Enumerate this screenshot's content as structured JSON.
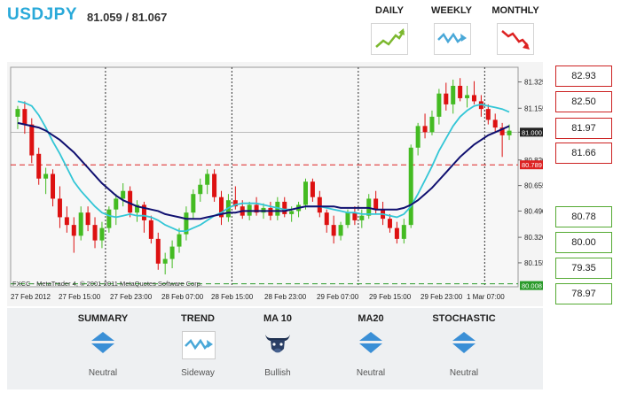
{
  "header": {
    "symbol": "USDJPY",
    "price": "81.059 / 81.067"
  },
  "timeframes": [
    {
      "label": "DAILY",
      "icon": "uptrend-arrow-icon",
      "color": "#7cb82f"
    },
    {
      "label": "WEEKLY",
      "icon": "sideways-arrow-icon",
      "color": "#4aa8d8"
    },
    {
      "label": "MONTHLY",
      "icon": "downtrend-arrow-icon",
      "color": "#dd2222"
    }
  ],
  "chart": {
    "watermark": "FXCC - MetaTrader 4, © 2001-2011 MetaQuotes Software Corp.",
    "y_ticks": [
      "81.325",
      "81.155",
      "81.000",
      "80.820",
      "80.655",
      "80.490",
      "80.320",
      "80.155"
    ],
    "x_ticks": [
      "27 Feb 2012",
      "27 Feb 15:00",
      "27 Feb 23:00",
      "28 Feb 07:00",
      "28 Feb 15:00",
      "28 Feb 23:00",
      "29 Feb 07:00",
      "29 Feb 15:00",
      "29 Feb 23:00",
      "1 Mar 07:00"
    ],
    "current_price_tag": "81.000",
    "resistance_line_tag": "80.789",
    "support_line_tag": "80.008",
    "colors": {
      "bull": "#44bb22",
      "bear": "#dd1111",
      "ma10": "#33c6d6",
      "ma20": "#101070",
      "hline": "#dd2222"
    }
  },
  "chart_data": {
    "type": "candlestick",
    "title": "USDJPY",
    "ylim": [
      80.0,
      81.42
    ],
    "y_ticks": [
      81.325,
      81.155,
      81.0,
      80.82,
      80.655,
      80.49,
      80.32,
      80.155
    ],
    "x_tick_labels": [
      "27 Feb 2012",
      "27 Feb 15:00",
      "27 Feb 23:00",
      "28 Feb 07:00",
      "28 Feb 15:00",
      "28 Feb 23:00",
      "29 Feb 07:00",
      "29 Feb 15:00",
      "29 Feb 23:00",
      "1 Mar 07:00"
    ],
    "candles": [
      [
        81.1,
        81.17,
        81.02,
        81.15
      ],
      [
        81.15,
        81.2,
        80.99,
        81.05
      ],
      [
        81.05,
        81.09,
        80.8,
        80.85
      ],
      [
        80.86,
        80.9,
        80.66,
        80.7
      ],
      [
        80.7,
        80.77,
        80.6,
        80.73
      ],
      [
        80.73,
        80.76,
        80.52,
        80.57
      ],
      [
        80.57,
        80.65,
        80.38,
        80.45
      ],
      [
        80.45,
        80.52,
        80.35,
        80.4
      ],
      [
        80.4,
        80.45,
        80.22,
        80.33
      ],
      [
        80.33,
        80.52,
        80.3,
        80.48
      ],
      [
        80.48,
        80.52,
        80.36,
        80.4
      ],
      [
        80.4,
        80.45,
        80.25,
        80.3
      ],
      [
        80.3,
        80.42,
        80.25,
        80.38
      ],
      [
        80.38,
        80.52,
        80.35,
        80.5
      ],
      [
        80.5,
        80.6,
        80.4,
        80.57
      ],
      [
        80.57,
        80.67,
        80.52,
        80.62
      ],
      [
        80.62,
        80.65,
        80.45,
        80.48
      ],
      [
        80.48,
        80.56,
        80.42,
        80.53
      ],
      [
        80.53,
        80.55,
        80.35,
        80.43
      ],
      [
        80.43,
        80.46,
        80.28,
        80.31
      ],
      [
        80.31,
        80.35,
        80.11,
        80.15
      ],
      [
        80.15,
        80.22,
        80.08,
        80.18
      ],
      [
        80.18,
        80.3,
        80.12,
        80.26
      ],
      [
        80.26,
        80.38,
        80.22,
        80.34
      ],
      [
        80.34,
        80.52,
        80.3,
        80.48
      ],
      [
        80.48,
        80.63,
        80.44,
        80.6
      ],
      [
        80.6,
        80.7,
        80.55,
        80.66
      ],
      [
        80.66,
        80.76,
        80.6,
        80.73
      ],
      [
        80.73,
        80.76,
        80.55,
        80.58
      ],
      [
        80.58,
        80.62,
        80.4,
        80.45
      ],
      [
        80.45,
        80.6,
        80.42,
        80.56
      ],
      [
        80.56,
        80.65,
        80.5,
        80.52
      ],
      [
        80.52,
        80.56,
        80.44,
        80.46
      ],
      [
        80.46,
        80.55,
        80.43,
        80.53
      ],
      [
        80.53,
        80.58,
        80.46,
        80.48
      ],
      [
        80.48,
        80.54,
        80.44,
        80.51
      ],
      [
        80.51,
        80.55,
        80.43,
        80.46
      ],
      [
        80.46,
        80.58,
        80.43,
        80.55
      ],
      [
        80.55,
        80.58,
        80.45,
        80.47
      ],
      [
        80.47,
        80.52,
        80.42,
        80.49
      ],
      [
        80.49,
        80.55,
        80.45,
        80.53
      ],
      [
        80.53,
        80.7,
        80.5,
        80.68
      ],
      [
        80.68,
        80.7,
        80.55,
        80.58
      ],
      [
        80.58,
        80.62,
        80.45,
        80.48
      ],
      [
        80.48,
        80.5,
        80.35,
        80.4
      ],
      [
        80.4,
        80.46,
        80.28,
        80.33
      ],
      [
        80.33,
        80.42,
        80.3,
        80.4
      ],
      [
        80.4,
        80.5,
        80.38,
        80.48
      ],
      [
        80.48,
        80.52,
        80.4,
        80.43
      ],
      [
        80.43,
        80.5,
        80.38,
        80.46
      ],
      [
        80.46,
        80.6,
        80.44,
        80.57
      ],
      [
        80.57,
        80.62,
        80.47,
        80.5
      ],
      [
        80.5,
        80.55,
        80.4,
        80.44
      ],
      [
        80.44,
        80.47,
        80.35,
        80.38
      ],
      [
        80.38,
        80.42,
        80.28,
        80.31
      ],
      [
        80.31,
        80.44,
        80.28,
        80.4
      ],
      [
        80.4,
        80.92,
        80.38,
        80.9
      ],
      [
        80.9,
        81.06,
        80.85,
        81.04
      ],
      [
        81.04,
        81.12,
        80.96,
        81.0
      ],
      [
        81.0,
        81.14,
        80.98,
        81.1
      ],
      [
        81.1,
        81.28,
        81.05,
        81.25
      ],
      [
        81.25,
        81.32,
        81.14,
        81.18
      ],
      [
        81.18,
        81.34,
        81.12,
        81.3
      ],
      [
        81.3,
        81.35,
        81.2,
        81.22
      ],
      [
        81.22,
        81.3,
        81.16,
        81.24
      ],
      [
        81.24,
        81.33,
        81.18,
        81.2
      ],
      [
        81.2,
        81.24,
        81.1,
        81.15
      ],
      [
        81.15,
        81.18,
        81.05,
        81.08
      ],
      [
        81.08,
        81.12,
        81.0,
        81.03
      ],
      [
        81.03,
        81.06,
        80.84,
        80.98
      ],
      [
        80.98,
        81.05,
        80.95,
        81.01
      ]
    ],
    "series": [
      {
        "name": "MA 10",
        "values": [
          81.2,
          81.19,
          81.17,
          81.11,
          81.03,
          80.94,
          80.86,
          80.77,
          80.68,
          80.62,
          80.57,
          80.52,
          80.48,
          80.46,
          80.45,
          80.46,
          80.47,
          80.46,
          80.46,
          80.45,
          80.43,
          80.4,
          80.38,
          80.36,
          80.36,
          80.38,
          80.4,
          80.43,
          80.46,
          80.48,
          80.51,
          80.53,
          80.54,
          80.54,
          80.54,
          80.53,
          80.52,
          80.51,
          80.5,
          80.5,
          80.51,
          80.52,
          80.52,
          80.52,
          80.51,
          80.5,
          80.49,
          80.48,
          80.48,
          80.47,
          80.47,
          80.47,
          80.47,
          80.46,
          80.45,
          80.47,
          80.52,
          80.6,
          80.69,
          80.78,
          80.88,
          80.96,
          81.04,
          81.1,
          81.14,
          81.17,
          81.18,
          81.17,
          81.16,
          81.15,
          81.13
        ]
      },
      {
        "name": "MA 20",
        "values": [
          81.06,
          81.05,
          81.04,
          81.03,
          81.01,
          80.98,
          80.95,
          80.91,
          80.87,
          80.82,
          80.77,
          80.72,
          80.67,
          80.63,
          80.59,
          80.56,
          80.54,
          80.52,
          80.51,
          80.5,
          80.49,
          80.47,
          80.46,
          80.45,
          80.44,
          80.44,
          80.44,
          80.45,
          80.46,
          80.47,
          80.48,
          80.48,
          80.49,
          80.49,
          80.49,
          80.49,
          80.49,
          80.49,
          80.49,
          80.5,
          80.51,
          80.52,
          80.52,
          80.52,
          80.52,
          80.52,
          80.51,
          80.51,
          80.51,
          80.51,
          80.51,
          80.5,
          80.5,
          80.5,
          80.5,
          80.51,
          80.53,
          80.56,
          80.6,
          80.64,
          80.69,
          80.74,
          80.79,
          80.84,
          80.88,
          80.92,
          80.95,
          80.98,
          81.0,
          81.02,
          81.04
        ]
      }
    ],
    "hlines": [
      80.789,
      80.008
    ],
    "current_price": 81.0
  },
  "levels": {
    "resistance": [
      "82.93",
      "82.50",
      "81.97",
      "81.66"
    ],
    "support": [
      "80.78",
      "80.00",
      "79.35",
      "78.97"
    ]
  },
  "indicators": [
    {
      "title": "SUMMARY",
      "value": "Neutral",
      "icon": "neutral-diamond-icon"
    },
    {
      "title": "TREND",
      "value": "Sideway",
      "icon": "sideways-arrow-icon"
    },
    {
      "title": "MA 10",
      "value": "Bullish",
      "icon": "bull-icon"
    },
    {
      "title": "MA20",
      "value": "Neutral",
      "icon": "neutral-diamond-icon"
    },
    {
      "title": "STOCHASTIC",
      "value": "Neutral",
      "icon": "neutral-diamond-icon"
    }
  ]
}
